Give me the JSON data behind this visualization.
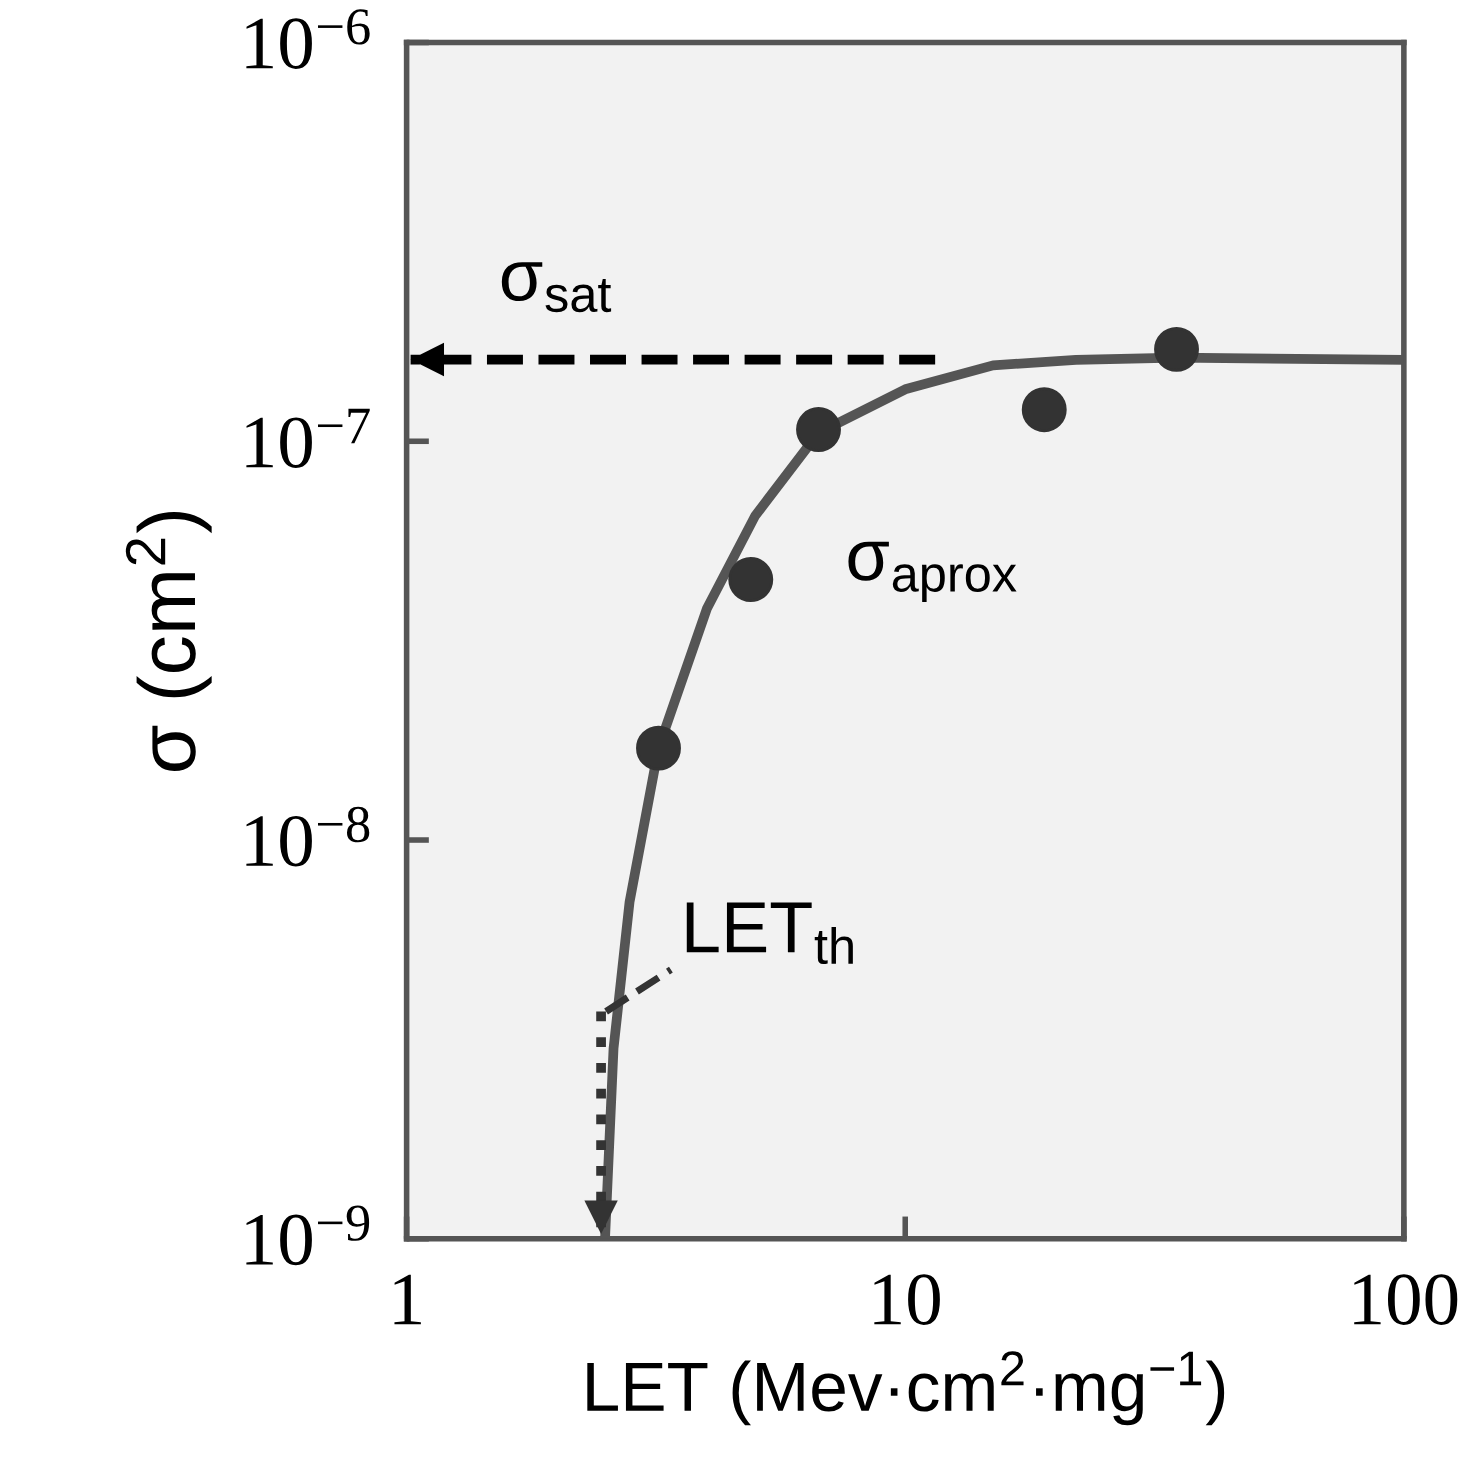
{
  "chart_data": {
    "type": "scatter",
    "xlabel": "LET (Mev·cm$^{2}$·mg$^{−1}$)",
    "ylabel": "σ (cm$^{2}$)",
    "log": "xy",
    "grid": false,
    "xlim": [
      1,
      100
    ],
    "xticks": [
      1,
      10,
      100
    ],
    "ylim": [
      1e-09,
      1e-06
    ],
    "yticks": [
      {
        "value": 1e-09,
        "label": "10$^{−9}$"
      },
      {
        "value": 1e-08,
        "label": "10$^{−8}$"
      },
      {
        "value": 1e-07,
        "label": "10$^{−7}$"
      },
      {
        "value": 1e-06,
        "label": "10$^{−6}$"
      }
    ],
    "series": [
      {
        "type": "line",
        "color": "#555555",
        "line_style": "solid",
        "marker": "none",
        "x": [
          2.5,
          2.6,
          2.8,
          3.2,
          4.0,
          5.0,
          6.7,
          10,
          15,
          22,
          35,
          100
        ],
        "values": [
          1e-09,
          3e-09,
          7e-09,
          1.7e-08,
          3.8e-08,
          6.5e-08,
          1.05e-07,
          1.35e-07,
          1.55e-07,
          1.6e-07,
          1.62e-07,
          1.6e-07
        ]
      },
      {
        "color": "#333333",
        "marker": "circle",
        "x": [
          3.2,
          4.9,
          6.7,
          19,
          35
        ],
        "values": [
          1.7e-08,
          4.5e-08,
          1.07e-07,
          1.2e-07,
          1.7e-07
        ]
      }
    ],
    "annotations": [
      "σ$_{sat}$",
      "σ$_{aprox}$",
      "LET$_{th}$"
    ]
  }
}
